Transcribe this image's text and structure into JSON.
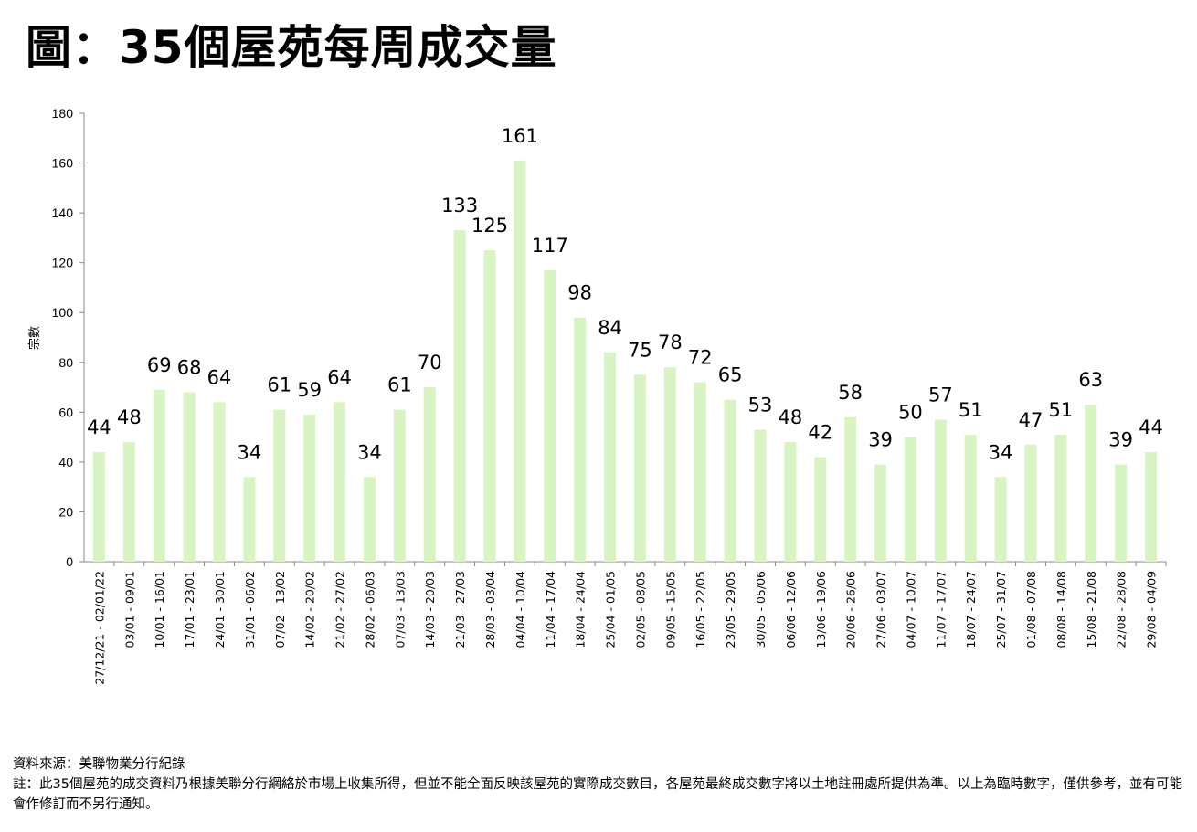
{
  "title": "圖：35個屋苑每周成交量",
  "chart_data": {
    "type": "bar",
    "title": "圖：35個屋苑每周成交量",
    "xlabel": "",
    "ylabel": "宗數",
    "ylim": [
      0,
      180
    ],
    "yticks": [
      0,
      20,
      40,
      60,
      80,
      100,
      120,
      140,
      160,
      180
    ],
    "grid": false,
    "bar_color": "#d8f4c2",
    "categories": [
      "27/12/21 - 02/01/22",
      "03/01 - 09/01",
      "10/01 - 16/01",
      "17/01 - 23/01",
      "24/01 - 30/01",
      "31/01 - 06/02",
      "07/02 - 13/02",
      "14/02 - 20/02",
      "21/02 - 27/02",
      "28/02 - 06/03",
      "07/03 - 13/03",
      "14/03 - 20/03",
      "21/03 - 27/03",
      "28/03 - 03/04",
      "04/04 - 10/04",
      "11/04 - 17/04",
      "18/04 - 24/04",
      "25/04 - 01/05",
      "02/05 - 08/05",
      "09/05 - 15/05",
      "16/05 - 22/05",
      "23/05 - 29/05",
      "30/05 - 05/06",
      "06/06 - 12/06",
      "13/06 - 19/06",
      "20/06 - 26/06",
      "27/06 - 03/07",
      "04/07 - 10/07",
      "11/07 - 17/07",
      "18/07 - 24/07",
      "25/07 - 31/07",
      "01/08 - 07/08",
      "08/08 - 14/08",
      "15/08 - 21/08",
      "22/08 - 28/08",
      "29/08 - 04/09"
    ],
    "values": [
      44,
      48,
      69,
      68,
      64,
      34,
      61,
      59,
      64,
      34,
      61,
      70,
      133,
      125,
      161,
      117,
      98,
      84,
      75,
      78,
      72,
      65,
      53,
      48,
      42,
      58,
      39,
      50,
      57,
      51,
      34,
      47,
      51,
      63,
      39,
      44
    ]
  },
  "notes": {
    "source": "資料來源：美聯物業分行紀錄",
    "remark": "註：此35個屋苑的成交資料乃根據美聯分行網絡於市場上收集所得，但並不能全面反映該屋苑的實際成交數目，各屋苑最終成交數字將以土地註冊處所提供為準。以上為臨時數字，僅供參考，並有可能會作修訂而不另行通知。"
  }
}
